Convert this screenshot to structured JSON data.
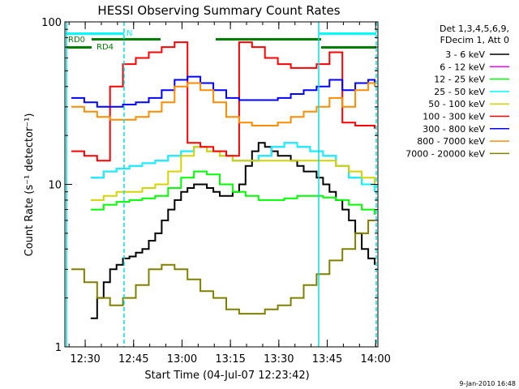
{
  "chart_data": {
    "type": "line",
    "title": "HESSI Observing Summary Count Rates",
    "xlabel": "Start Time (04-Jul-07 12:23:42)",
    "ylabel": "Count Rate (s⁻¹ detector⁻¹)",
    "x_unit": "minutes from 12:23:42",
    "xlim": [
      0,
      97
    ],
    "ylim": [
      1,
      100
    ],
    "y_scale": "log",
    "x_ticks": [
      {
        "value": 6.3,
        "label": "12:30"
      },
      {
        "value": 21.3,
        "label": "12:45"
      },
      {
        "value": 36.3,
        "label": "13:00"
      },
      {
        "value": 51.3,
        "label": "13:15"
      },
      {
        "value": 66.3,
        "label": "13:30"
      },
      {
        "value": 81.3,
        "label": "13:45"
      },
      {
        "value": 96.3,
        "label": "14:00"
      }
    ],
    "y_ticks": [
      {
        "value": 1,
        "label": "1"
      },
      {
        "value": 10,
        "label": "10"
      },
      {
        "value": 100,
        "label": "100"
      }
    ],
    "legend": {
      "placement": "right",
      "header": [
        "Det 1,3,4,5,6,9,",
        "FDecim 1, Att 0"
      ]
    },
    "series": [
      {
        "name": "3 - 6 keV",
        "color": "#000000",
        "x": [
          8,
          10,
          12,
          14,
          16,
          18,
          20,
          22,
          24,
          26,
          28,
          30,
          32,
          34,
          36,
          38,
          40,
          42,
          44,
          46,
          48,
          50,
          52,
          54,
          56,
          58,
          60,
          62,
          64,
          66,
          68,
          70,
          72,
          74,
          76,
          78,
          80,
          82,
          84,
          86,
          88,
          90,
          92,
          94,
          96
        ],
        "y": [
          1.5,
          2.0,
          2.5,
          3.0,
          3.2,
          3.5,
          3.6,
          3.8,
          4.0,
          4.5,
          5,
          6,
          7,
          8,
          9,
          9.5,
          10,
          10,
          9.5,
          9,
          8.5,
          8.5,
          9,
          10,
          13,
          16,
          18,
          17,
          16,
          15,
          15,
          14,
          13,
          12,
          12,
          11,
          10,
          9,
          8,
          7,
          6,
          5,
          4,
          3.5,
          3.2
        ]
      },
      {
        "name": "6 - 12 keV",
        "color": "#ff00ff",
        "x": [
          8,
          12,
          16,
          20,
          24,
          28,
          32,
          36,
          40,
          44,
          48,
          52,
          56,
          60,
          64,
          68,
          72,
          76,
          80,
          84,
          88,
          92,
          96
        ],
        "y": [
          11,
          12,
          12.5,
          13,
          13.5,
          14,
          15,
          16,
          17,
          16,
          15,
          14,
          14,
          15,
          17,
          18,
          17,
          16,
          15,
          13,
          11,
          10,
          9
        ]
      },
      {
        "name": "12 - 25 keV",
        "color": "#00ff00",
        "x": [
          8,
          12,
          16,
          20,
          24,
          28,
          32,
          36,
          40,
          44,
          48,
          52,
          56,
          60,
          64,
          68,
          72,
          76,
          80,
          84,
          88,
          92,
          96
        ],
        "y": [
          7,
          7.5,
          7.8,
          8,
          8.2,
          8.5,
          9.5,
          11,
          12,
          11.5,
          10,
          9,
          8.5,
          8,
          8,
          8.2,
          8.5,
          8.5,
          8.3,
          8,
          7.5,
          7,
          6.5
        ]
      },
      {
        "name": "25 - 50 keV",
        "color": "#00ffff",
        "x": [
          8,
          12,
          16,
          20,
          24,
          28,
          32,
          36,
          40,
          44,
          48,
          52,
          56,
          60,
          64,
          68,
          72,
          76,
          80,
          84,
          88,
          92,
          96
        ],
        "y": [
          11,
          12,
          12.5,
          13,
          13.5,
          14,
          15,
          16,
          17,
          16,
          15,
          14,
          14,
          15,
          17,
          18,
          17,
          16,
          15,
          13,
          11,
          10,
          9
        ]
      },
      {
        "name": "50 - 100 keV",
        "color": "#d4d400",
        "x": [
          8,
          12,
          16,
          20,
          24,
          28,
          32,
          36,
          40,
          44,
          48,
          52,
          56,
          60,
          64,
          68,
          72,
          76,
          80,
          84,
          88,
          92,
          96
        ],
        "y": [
          8,
          8.5,
          9,
          9,
          9.5,
          10,
          12,
          15,
          17,
          16,
          15,
          14,
          14,
          14,
          14,
          14,
          14,
          14,
          14,
          13,
          12,
          11,
          10
        ]
      },
      {
        "name": "100 - 300 keV",
        "color": "#ff0000",
        "x": [
          2,
          6,
          10,
          14,
          18,
          22,
          26,
          30,
          34,
          38,
          42,
          46,
          50,
          54,
          58,
          62,
          66,
          70,
          74,
          78,
          82,
          86,
          90,
          94,
          96
        ],
        "y": [
          16,
          15,
          14,
          40,
          55,
          60,
          65,
          70,
          75,
          18,
          17,
          16,
          15,
          75,
          70,
          60,
          55,
          52,
          52,
          55,
          65,
          24,
          23,
          23,
          22
        ]
      },
      {
        "name": "300 - 800 keV",
        "color": "#0000ff",
        "x": [
          2,
          6,
          10,
          14,
          18,
          22,
          26,
          30,
          34,
          38,
          42,
          46,
          50,
          54,
          58,
          62,
          66,
          70,
          74,
          78,
          82,
          86,
          90,
          94,
          96
        ],
        "y": [
          34,
          32,
          30,
          30,
          31,
          32,
          34,
          38,
          44,
          46,
          42,
          38,
          34,
          33,
          33,
          33,
          34,
          36,
          38,
          40,
          44,
          38,
          42,
          44,
          42
        ]
      },
      {
        "name": "800 - 7000 keV",
        "color": "#ff8c00",
        "x": [
          2,
          6,
          10,
          14,
          18,
          22,
          26,
          30,
          34,
          38,
          42,
          46,
          50,
          54,
          58,
          62,
          66,
          70,
          74,
          78,
          82,
          86,
          90,
          94,
          96
        ],
        "y": [
          30,
          28,
          26,
          25,
          25,
          26,
          28,
          32,
          40,
          42,
          38,
          32,
          26,
          24,
          23,
          23,
          24,
          26,
          28,
          30,
          34,
          30,
          38,
          42,
          40
        ]
      },
      {
        "name": "7000 - 20000 keV",
        "color": "#808000",
        "x": [
          2,
          6,
          10,
          14,
          18,
          22,
          26,
          30,
          34,
          38,
          42,
          46,
          50,
          54,
          58,
          62,
          66,
          70,
          74,
          78,
          82,
          86,
          90,
          94,
          96
        ],
        "y": [
          3.0,
          2.5,
          2.0,
          1.8,
          2.0,
          2.4,
          3.0,
          3.2,
          3.0,
          2.6,
          2.2,
          2.0,
          1.7,
          1.6,
          1.6,
          1.7,
          1.8,
          2.0,
          2.4,
          2.8,
          3.4,
          4,
          5,
          6,
          6
        ]
      }
    ],
    "attenuator_bars": [
      {
        "label": "RD0",
        "color": "#00ffff"
      },
      {
        "label": "RD4",
        "color": "#007f00"
      },
      {
        "label": "N",
        "color": "#00ffff"
      }
    ]
  },
  "footer": {
    "timestamp": "9-Jan-2010 16:48"
  }
}
